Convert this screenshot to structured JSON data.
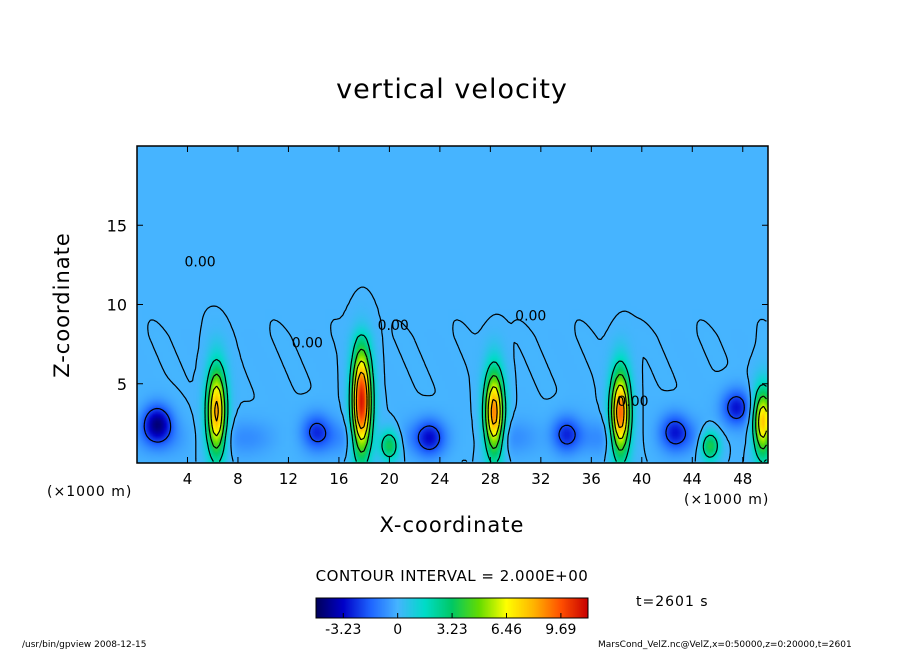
{
  "chart_data": {
    "type": "heatmap",
    "title": "vertical velocity",
    "xlabel": "X-coordinate",
    "ylabel": "Z-coordinate",
    "x_unit": "(×1000 m)",
    "y_unit": "(×1000 m)",
    "xlim": [
      0,
      50
    ],
    "ylim": [
      0,
      20
    ],
    "x_ticks": [
      4,
      8,
      12,
      16,
      20,
      24,
      28,
      32,
      36,
      40,
      44,
      48
    ],
    "y_ticks": [
      5,
      10,
      15
    ],
    "contour_interval_text": "CONTOUR INTERVAL = 2.000E+00",
    "contour_label": "0.00",
    "time_label": "t=2601 s",
    "colorbar": {
      "ticks": [
        "-3.23",
        "0",
        "3.23",
        "6.46",
        "9.69"
      ],
      "range": [
        -4.85,
        11.3
      ],
      "colors": [
        "#00005a",
        "#0000c8",
        "#1e64ff",
        "#46b4ff",
        "#00dcc8",
        "#00c864",
        "#64dc00",
        "#ffff00",
        "#ffb400",
        "#ff5000",
        "#c80000"
      ]
    },
    "updrafts": [
      {
        "x": 6.3,
        "ztop": 6.5,
        "peak": 8.5
      },
      {
        "x": 17.8,
        "ztop": 7.8,
        "peak": 11.0
      },
      {
        "x": 28.3,
        "ztop": 6.3,
        "peak": 9.0
      },
      {
        "x": 38.3,
        "ztop": 6.3,
        "peak": 9.5
      },
      {
        "x": 49.6,
        "ztop": 5.0,
        "peak": 8.0
      },
      {
        "x": 20.0,
        "ztop": 2.2,
        "peak": 3.6
      },
      {
        "x": 45.4,
        "ztop": 2.2,
        "peak": 4.0
      }
    ],
    "downdrafts": [
      {
        "x": 1.6,
        "z": 2.5,
        "min": -4.0
      },
      {
        "x": 14.2,
        "z": 2.0,
        "min": -2.2
      },
      {
        "x": 23.2,
        "z": 1.6,
        "min": -2.4
      },
      {
        "x": 34.0,
        "z": 1.8,
        "min": -2.6
      },
      {
        "x": 42.6,
        "z": 2.0,
        "min": -2.4
      },
      {
        "x": 47.5,
        "z": 3.5,
        "min": -3.0
      }
    ],
    "zero_contour_labels": [
      {
        "x": 5.0,
        "z": 12.4
      },
      {
        "x": 13.5,
        "z": 7.3
      },
      {
        "x": 20.3,
        "z": 8.4
      },
      {
        "x": 31.2,
        "z": 9.0
      },
      {
        "x": 39.3,
        "z": 3.6
      }
    ]
  },
  "footer": {
    "left": "/usr/bin/gpview   2008-12-15",
    "right": "MarsCond_VelZ.nc@VelZ,x=0:50000,z=0:20000,t=2601"
  },
  "colors": {
    "background_field": "#00e6a6",
    "contour_line": "#000000"
  }
}
